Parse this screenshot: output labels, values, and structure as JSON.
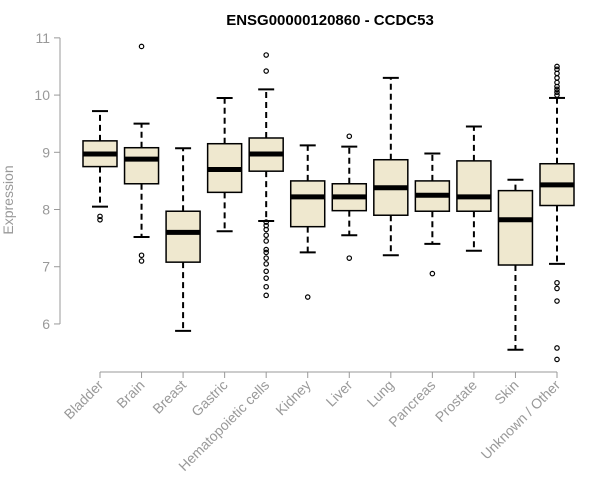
{
  "chart_data": {
    "type": "boxplot",
    "title": "ENSG00000120860 - CCDC53",
    "xlabel": "",
    "ylabel": "Expression",
    "ylim": [
      5.3,
      11.05
    ],
    "yticks": [
      6,
      7,
      8,
      9,
      10,
      11
    ],
    "box_fill": "#efe8cf",
    "box_stroke": "#000000",
    "categories": [
      "Bladder",
      "Brain",
      "Breast",
      "Gastric",
      "Hematopoietic cells",
      "Kidney",
      "Liver",
      "Lung",
      "Pancreas",
      "Prostate",
      "Skin",
      "Unknown / Other"
    ],
    "boxes": [
      {
        "whisker_low": 8.05,
        "q1": 8.75,
        "median": 8.97,
        "q3": 9.2,
        "whisker_high": 9.72,
        "outliers": [
          7.88,
          7.82
        ]
      },
      {
        "whisker_low": 7.52,
        "q1": 8.45,
        "median": 8.88,
        "q3": 9.08,
        "whisker_high": 9.5,
        "outliers": [
          10.85,
          7.2,
          7.1
        ]
      },
      {
        "whisker_low": 5.88,
        "q1": 7.08,
        "median": 7.6,
        "q3": 7.97,
        "whisker_high": 9.07,
        "outliers": []
      },
      {
        "whisker_low": 7.62,
        "q1": 8.3,
        "median": 8.7,
        "q3": 9.15,
        "whisker_high": 9.95,
        "outliers": []
      },
      {
        "whisker_low": 7.8,
        "q1": 8.67,
        "median": 8.97,
        "q3": 9.25,
        "whisker_high": 10.1,
        "outliers": [
          10.7,
          10.42,
          7.78,
          7.72,
          7.65,
          7.55,
          7.45,
          7.3,
          7.25,
          7.15,
          7.05,
          6.92,
          6.8,
          6.65,
          6.5
        ]
      },
      {
        "whisker_low": 7.25,
        "q1": 7.7,
        "median": 8.22,
        "q3": 8.5,
        "whisker_high": 9.12,
        "outliers": [
          6.47
        ]
      },
      {
        "whisker_low": 7.55,
        "q1": 7.98,
        "median": 8.22,
        "q3": 8.45,
        "whisker_high": 9.1,
        "outliers": [
          9.28,
          7.15
        ]
      },
      {
        "whisker_low": 7.2,
        "q1": 7.9,
        "median": 8.38,
        "q3": 8.87,
        "whisker_high": 10.3,
        "outliers": []
      },
      {
        "whisker_low": 7.4,
        "q1": 7.97,
        "median": 8.25,
        "q3": 8.5,
        "whisker_high": 8.98,
        "outliers": [
          6.88
        ]
      },
      {
        "whisker_low": 7.28,
        "q1": 7.97,
        "median": 8.22,
        "q3": 8.85,
        "whisker_high": 9.45,
        "outliers": []
      },
      {
        "whisker_low": 5.55,
        "q1": 7.03,
        "median": 7.82,
        "q3": 8.33,
        "whisker_high": 8.52,
        "outliers": []
      },
      {
        "whisker_low": 7.05,
        "q1": 8.07,
        "median": 8.43,
        "q3": 8.8,
        "whisker_high": 9.95,
        "outliers": [
          10.5,
          10.45,
          10.38,
          10.3,
          10.22,
          10.15,
          10.1,
          10.05,
          10.0,
          6.72,
          6.62,
          6.4,
          5.58,
          5.38
        ]
      }
    ]
  }
}
